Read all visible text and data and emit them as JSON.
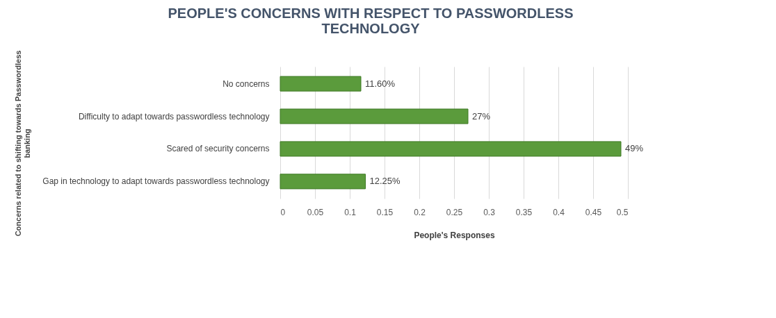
{
  "chart_data": {
    "type": "bar",
    "orientation": "horizontal",
    "title": "PEOPLE'S CONCERNS WITH RESPECT TO PASSWORDLESS TECHNOLOGY",
    "xlabel": "People's Responses",
    "ylabel": "Concerns related to shifting towards Passwordless banking",
    "categories": [
      "No concerns",
      "Difficulty to adapt towards passwordless technology",
      "Scared of security concerns",
      "Gap in technology to adapt towards passwordless technology"
    ],
    "values": [
      0.116,
      0.27,
      0.49,
      0.1225
    ],
    "value_labels": [
      "11.60%",
      "27%",
      "49%",
      "12.25%"
    ],
    "color": "#5b9b3c",
    "xlim": [
      0,
      0.5
    ],
    "xticks": [
      0,
      0.05,
      0.1,
      0.15,
      0.2,
      0.25,
      0.3,
      0.35,
      0.4,
      0.45,
      0.5
    ],
    "grid": "x"
  }
}
